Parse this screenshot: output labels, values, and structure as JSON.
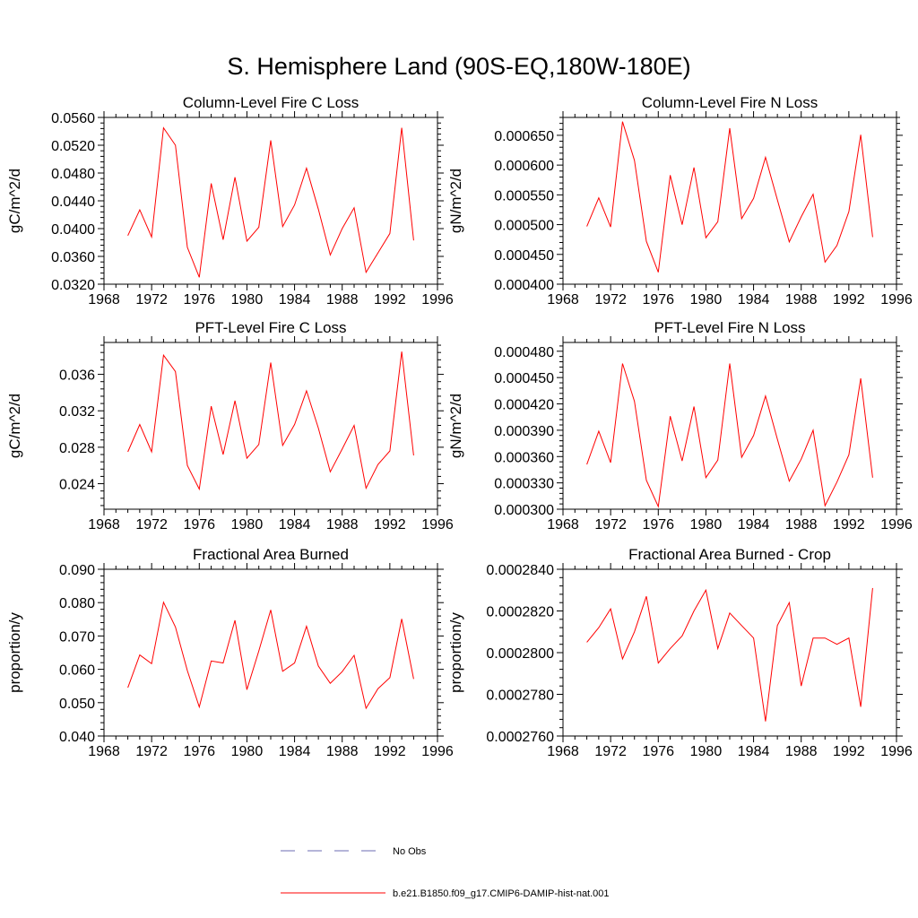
{
  "title": "S. Hemisphere Land (90S-EQ,180W-180E)",
  "colors": {
    "model": "#ff0000",
    "obs": "#6b6bb3",
    "axis": "#000000"
  },
  "legend": {
    "placement": "bottom-center",
    "entries": [
      {
        "label": "No Obs",
        "style": "dashed",
        "color": "#6b6bb3"
      },
      {
        "label": "b.e21.B1850.f09_g17.CMIP6-DAMIP-hist-nat.001",
        "style": "solid",
        "color": "#ff0000"
      }
    ]
  },
  "chart_data": [
    {
      "type": "line",
      "title": "Column-Level Fire C Loss",
      "ylabel": "gC/m^2/d",
      "xlim": [
        1968,
        1996
      ],
      "xticks": [
        1968,
        1972,
        1976,
        1980,
        1984,
        1988,
        1992,
        1996
      ],
      "ylim": [
        0.032,
        0.056
      ],
      "yticks": [
        0.032,
        0.036,
        0.04,
        0.044,
        0.048,
        0.052,
        0.056
      ],
      "ytick_labels": [
        "0.0320",
        "0.0360",
        "0.0400",
        "0.0440",
        "0.0480",
        "0.0520",
        "0.0560"
      ],
      "x": [
        1970,
        1971,
        1972,
        1973,
        1974,
        1975,
        1976,
        1977,
        1978,
        1979,
        1980,
        1981,
        1982,
        1983,
        1984,
        1985,
        1986,
        1987,
        1988,
        1989,
        1990,
        1991,
        1992,
        1993,
        1994
      ],
      "series": [
        {
          "name": "b.e21.B1850.f09_g17.CMIP6-DAMIP-hist-nat.001",
          "values": [
            0.039,
            0.0427,
            0.0388,
            0.0545,
            0.052,
            0.0373,
            0.033,
            0.0465,
            0.0384,
            0.0474,
            0.0382,
            0.0402,
            0.0527,
            0.0403,
            0.0434,
            0.0487,
            0.0428,
            0.0362,
            0.04,
            0.043,
            0.0337,
            0.0365,
            0.0393,
            0.0545,
            0.0383
          ]
        }
      ]
    },
    {
      "type": "line",
      "title": "Column-Level Fire N Loss",
      "ylabel": "gN/m^2/d",
      "xlim": [
        1968,
        1996
      ],
      "xticks": [
        1968,
        1972,
        1976,
        1980,
        1984,
        1988,
        1992,
        1996
      ],
      "ylim": [
        0.0004,
        0.00068
      ],
      "yticks": [
        0.0004,
        0.00045,
        0.0005,
        0.00055,
        0.0006,
        0.00065
      ],
      "ytick_labels": [
        "0.000400",
        "0.000450",
        "0.000500",
        "0.000550",
        "0.000600",
        "0.000650"
      ],
      "x": [
        1970,
        1971,
        1972,
        1973,
        1974,
        1975,
        1976,
        1977,
        1978,
        1979,
        1980,
        1981,
        1982,
        1983,
        1984,
        1985,
        1986,
        1987,
        1988,
        1989,
        1990,
        1991,
        1992,
        1993,
        1994
      ],
      "series": [
        {
          "name": "b.e21.B1850.f09_g17.CMIP6-DAMIP-hist-nat.001",
          "values": [
            0.000497,
            0.000545,
            0.000496,
            0.000673,
            0.000608,
            0.000472,
            0.00042,
            0.000583,
            0.0005,
            0.000596,
            0.000478,
            0.000505,
            0.000662,
            0.00051,
            0.000544,
            0.000613,
            0.000542,
            0.000471,
            0.000513,
            0.000551,
            0.000437,
            0.000465,
            0.000522,
            0.000651,
            0.000479
          ]
        }
      ]
    },
    {
      "type": "line",
      "title": "PFT-Level Fire C Loss",
      "ylabel": "gC/m^2/d",
      "xlim": [
        1968,
        1996
      ],
      "xticks": [
        1968,
        1972,
        1976,
        1980,
        1984,
        1988,
        1992,
        1996
      ],
      "ylim": [
        0.0212,
        0.0395
      ],
      "yticks": [
        0.024,
        0.028,
        0.032,
        0.036
      ],
      "ytick_labels": [
        "0.024",
        "0.028",
        "0.032",
        "0.036"
      ],
      "x": [
        1970,
        1971,
        1972,
        1973,
        1974,
        1975,
        1976,
        1977,
        1978,
        1979,
        1980,
        1981,
        1982,
        1983,
        1984,
        1985,
        1986,
        1987,
        1988,
        1989,
        1990,
        1991,
        1992,
        1993,
        1994
      ],
      "series": [
        {
          "name": "b.e21.B1850.f09_g17.CMIP6-DAMIP-hist-nat.001",
          "values": [
            0.0275,
            0.0305,
            0.0275,
            0.0381,
            0.0363,
            0.026,
            0.0234,
            0.0325,
            0.0272,
            0.0331,
            0.0268,
            0.0283,
            0.0373,
            0.0282,
            0.0305,
            0.0342,
            0.0301,
            0.0253,
            0.0278,
            0.0304,
            0.0235,
            0.0261,
            0.0276,
            0.0385,
            0.0271
          ]
        }
      ]
    },
    {
      "type": "line",
      "title": "PFT-Level Fire N Loss",
      "ylabel": "gN/m^2/d",
      "xlim": [
        1968,
        1996
      ],
      "xticks": [
        1968,
        1972,
        1976,
        1980,
        1984,
        1988,
        1992,
        1996
      ],
      "ylim": [
        0.0003,
        0.00049
      ],
      "yticks": [
        0.0003,
        0.00033,
        0.00036,
        0.00039,
        0.00042,
        0.00045,
        0.00048
      ],
      "ytick_labels": [
        "0.000300",
        "0.000330",
        "0.000360",
        "0.000390",
        "0.000420",
        "0.000450",
        "0.000480"
      ],
      "x": [
        1970,
        1971,
        1972,
        1973,
        1974,
        1975,
        1976,
        1977,
        1978,
        1979,
        1980,
        1981,
        1982,
        1983,
        1984,
        1985,
        1986,
        1987,
        1988,
        1989,
        1990,
        1991,
        1992,
        1993,
        1994
      ],
      "series": [
        {
          "name": "b.e21.B1850.f09_g17.CMIP6-DAMIP-hist-nat.001",
          "values": [
            0.000351,
            0.000389,
            0.000353,
            0.000466,
            0.000423,
            0.000333,
            0.000303,
            0.000406,
            0.000355,
            0.000417,
            0.000336,
            0.000356,
            0.000466,
            0.000359,
            0.000384,
            0.000429,
            0.00038,
            0.000332,
            0.000357,
            0.00039,
            0.000304,
            0.000331,
            0.000362,
            0.000449,
            0.000336
          ]
        }
      ]
    },
    {
      "type": "line",
      "title": "Fractional Area Burned",
      "ylabel": "proportion/y",
      "xlim": [
        1968,
        1996
      ],
      "xticks": [
        1968,
        1972,
        1976,
        1980,
        1984,
        1988,
        1992,
        1996
      ],
      "ylim": [
        0.04,
        0.09
      ],
      "yticks": [
        0.04,
        0.05,
        0.06,
        0.07,
        0.08,
        0.09
      ],
      "ytick_labels": [
        "0.040",
        "0.050",
        "0.060",
        "0.070",
        "0.080",
        "0.090"
      ],
      "x": [
        1970,
        1971,
        1972,
        1973,
        1974,
        1975,
        1976,
        1977,
        1978,
        1979,
        1980,
        1981,
        1982,
        1983,
        1984,
        1985,
        1986,
        1987,
        1988,
        1989,
        1990,
        1991,
        1992,
        1993,
        1994
      ],
      "series": [
        {
          "name": "b.e21.B1850.f09_g17.CMIP6-DAMIP-hist-nat.001",
          "values": [
            0.0545,
            0.0643,
            0.0617,
            0.0801,
            0.0727,
            0.0596,
            0.0487,
            0.0625,
            0.0619,
            0.0747,
            0.0539,
            0.0655,
            0.0778,
            0.0594,
            0.0619,
            0.0729,
            0.061,
            0.0558,
            0.0593,
            0.0642,
            0.0483,
            0.0542,
            0.0575,
            0.0751,
            0.0571
          ]
        }
      ]
    },
    {
      "type": "line",
      "title": "Fractional Area Burned - Crop",
      "ylabel": "proportion/y",
      "xlim": [
        1968,
        1996
      ],
      "xticks": [
        1968,
        1972,
        1976,
        1980,
        1984,
        1988,
        1992,
        1996
      ],
      "ylim": [
        0.000276,
        0.000284
      ],
      "yticks": [
        0.000276,
        0.000278,
        0.00028,
        0.000282,
        0.000284
      ],
      "ytick_labels": [
        "0.0002760",
        "0.0002780",
        "0.0002800",
        "0.0002820",
        "0.0002840"
      ],
      "x": [
        1970,
        1971,
        1972,
        1973,
        1974,
        1975,
        1976,
        1977,
        1978,
        1979,
        1980,
        1981,
        1982,
        1983,
        1984,
        1985,
        1986,
        1987,
        1988,
        1989,
        1990,
        1991,
        1992,
        1993,
        1994
      ],
      "series": [
        {
          "name": "b.e21.B1850.f09_g17.CMIP6-DAMIP-hist-nat.001",
          "values": [
            0.0002805,
            0.0002812,
            0.0002821,
            0.0002797,
            0.000281,
            0.0002827,
            0.0002795,
            0.0002802,
            0.0002808,
            0.000282,
            0.000283,
            0.0002802,
            0.0002819,
            0.0002813,
            0.0002807,
            0.0002767,
            0.0002813,
            0.0002824,
            0.0002784,
            0.0002807,
            0.0002807,
            0.0002804,
            0.0002807,
            0.0002774,
            0.0002831
          ]
        }
      ]
    }
  ]
}
